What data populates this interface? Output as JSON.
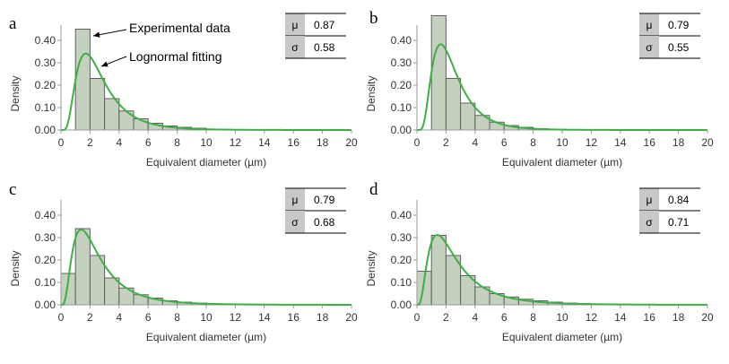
{
  "chart_data": [
    {
      "type": "bar",
      "panel_label": "a",
      "xlabel": "Equivalent diameter (µm)",
      "ylabel": "Density",
      "xlim": [
        0,
        20
      ],
      "ylim": [
        0,
        0.5
      ],
      "x_ticks": [
        "0",
        "2",
        "4",
        "6",
        "8",
        "10",
        "12",
        "14",
        "16",
        "18",
        "20"
      ],
      "y_ticks": [
        "0.00",
        "0.10",
        "0.20",
        "0.30",
        "0.40"
      ],
      "bin_width": 1,
      "bin_starts": [
        1,
        2,
        3,
        4,
        5,
        6,
        7,
        8,
        9,
        10
      ],
      "values": [
        0.45,
        0.23,
        0.14,
        0.085,
        0.05,
        0.03,
        0.018,
        0.012,
        0.008,
        0.004
      ],
      "fit": {
        "type": "lognormal",
        "mu": 0.87,
        "sigma": 0.58
      },
      "stats_table": [
        {
          "symbol": "μ",
          "value": "0.87"
        },
        {
          "symbol": "σ",
          "value": "0.58"
        }
      ],
      "annotations": [
        {
          "text": "Experimental data",
          "target": "bar"
        },
        {
          "text": "Lognormal fitting",
          "target": "curve"
        }
      ]
    },
    {
      "type": "bar",
      "panel_label": "b",
      "xlabel": "Equivalent diameter (µm)",
      "ylabel": "Density",
      "xlim": [
        0,
        20
      ],
      "ylim": [
        0,
        0.5
      ],
      "x_ticks": [
        "0",
        "2",
        "4",
        "6",
        "8",
        "10",
        "12",
        "14",
        "16",
        "18",
        "20"
      ],
      "y_ticks": [
        "0.00",
        "0.10",
        "0.20",
        "0.30",
        "0.40"
      ],
      "bin_width": 1,
      "bin_starts": [
        1,
        2,
        3,
        4,
        5,
        6,
        7,
        8,
        9
      ],
      "values": [
        0.51,
        0.23,
        0.12,
        0.065,
        0.035,
        0.02,
        0.012,
        0.006,
        0.003
      ],
      "fit": {
        "type": "lognormal",
        "mu": 0.79,
        "sigma": 0.55
      },
      "stats_table": [
        {
          "symbol": "μ",
          "value": "0.79"
        },
        {
          "symbol": "σ",
          "value": "0.55"
        }
      ]
    },
    {
      "type": "bar",
      "panel_label": "c",
      "xlabel": "Equivalent diameter (µm)",
      "ylabel": "Density",
      "xlim": [
        0,
        20
      ],
      "ylim": [
        0,
        0.5
      ],
      "x_ticks": [
        "0",
        "2",
        "4",
        "6",
        "8",
        "10",
        "12",
        "14",
        "16",
        "18",
        "20"
      ],
      "y_ticks": [
        "0.00",
        "0.10",
        "0.20",
        "0.30",
        "0.40"
      ],
      "bin_width": 1,
      "bin_starts": [
        0,
        1,
        2,
        3,
        4,
        5,
        6,
        7,
        8,
        9,
        10,
        11,
        12
      ],
      "values": [
        0.14,
        0.34,
        0.22,
        0.12,
        0.075,
        0.045,
        0.03,
        0.018,
        0.012,
        0.008,
        0.005,
        0.004,
        0.003
      ],
      "fit": {
        "type": "lognormal",
        "mu": 0.79,
        "sigma": 0.68
      },
      "stats_table": [
        {
          "symbol": "μ",
          "value": "0.79"
        },
        {
          "symbol": "σ",
          "value": "0.68"
        }
      ]
    },
    {
      "type": "bar",
      "panel_label": "d",
      "xlabel": "Equivalent diameter (µm)",
      "ylabel": "Density",
      "xlim": [
        0,
        20
      ],
      "ylim": [
        0,
        0.5
      ],
      "x_ticks": [
        "0",
        "2",
        "4",
        "6",
        "8",
        "10",
        "12",
        "14",
        "16",
        "18",
        "20"
      ],
      "y_ticks": [
        "0.00",
        "0.10",
        "0.20",
        "0.30",
        "0.40"
      ],
      "bin_width": 1,
      "bin_starts": [
        0,
        1,
        2,
        3,
        4,
        5,
        6,
        7,
        8,
        9,
        10,
        11,
        12,
        13
      ],
      "values": [
        0.15,
        0.31,
        0.22,
        0.13,
        0.08,
        0.05,
        0.035,
        0.025,
        0.018,
        0.012,
        0.008,
        0.006,
        0.004,
        0.003
      ],
      "fit": {
        "type": "lognormal",
        "mu": 0.84,
        "sigma": 0.71
      },
      "stats_table": [
        {
          "symbol": "μ",
          "value": "0.84"
        },
        {
          "symbol": "σ",
          "value": "0.71"
        }
      ]
    }
  ],
  "colors": {
    "bar_fill": "#c4d1bf",
    "bar_stroke": "#5f5f5f",
    "curve": "#3cb043",
    "table_symbol_bg": "#c8c8c8",
    "axis": "#9a9a9a",
    "text": "#333333"
  }
}
